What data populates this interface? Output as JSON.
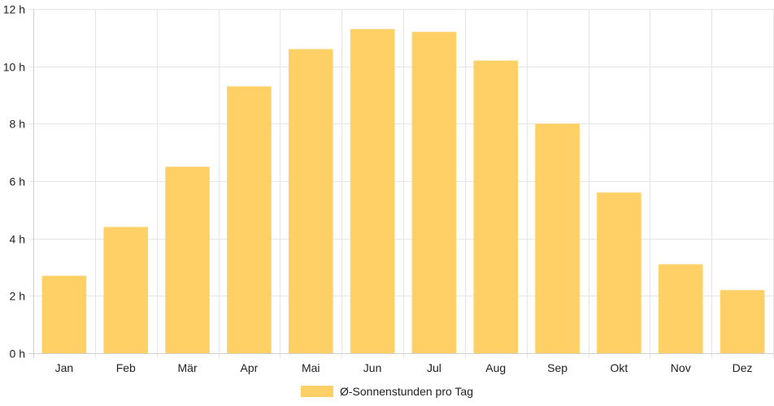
{
  "chart_data": {
    "type": "bar",
    "title": "",
    "xlabel": "",
    "ylabel": "",
    "categories": [
      "Jan",
      "Feb",
      "Mär",
      "Apr",
      "Mai",
      "Jun",
      "Jul",
      "Aug",
      "Sep",
      "Okt",
      "Nov",
      "Dez"
    ],
    "series": [
      {
        "name": "Ø-Sonnenstunden pro Tag",
        "values": [
          2.7,
          4.4,
          6.5,
          9.3,
          10.6,
          11.3,
          11.2,
          10.2,
          8.0,
          5.6,
          3.1,
          2.2
        ],
        "color": "#fed065"
      }
    ],
    "ylim": [
      0,
      12
    ],
    "y_ticks": [
      0,
      2,
      4,
      6,
      8,
      10,
      12
    ],
    "y_tick_suffix": " h",
    "grid": true,
    "legend_position": "bottom-center"
  }
}
